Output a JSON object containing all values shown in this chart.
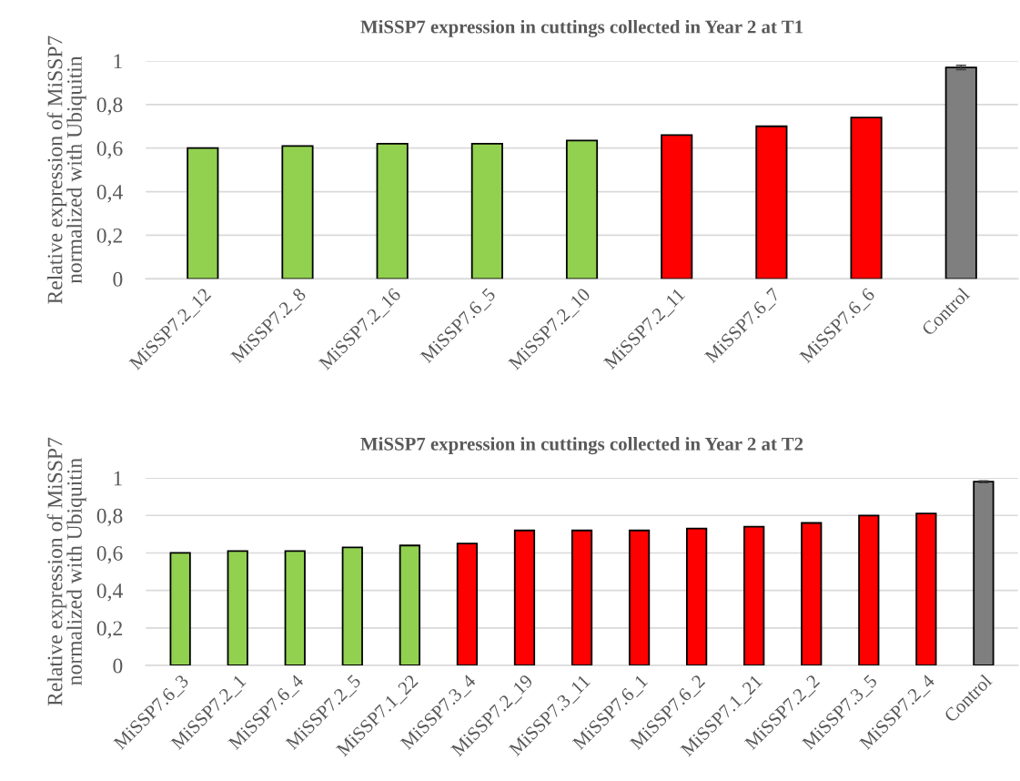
{
  "chart_data": [
    {
      "type": "bar",
      "title": "MiSSP7 expression in cuttings collected in Year 2 at T1",
      "ylabel": "Relative expression of MiSSP7\nnormalized with Ubiquitin",
      "categories": [
        "MiSSP7.2_12",
        "MiSSP7.2_8",
        "MiSSP7.2_16",
        "MiSSP7.6_5",
        "MiSSP7.2_10",
        "MiSSP7.2_11",
        "MiSSP7.6_7",
        "MiSSP7.6_6",
        "Control"
      ],
      "values": [
        0.6,
        0.61,
        0.62,
        0.62,
        0.635,
        0.66,
        0.7,
        0.74,
        0.97
      ],
      "errors": [
        null,
        null,
        null,
        null,
        null,
        null,
        null,
        null,
        0.01
      ],
      "colors": [
        "#92d050",
        "#92d050",
        "#92d050",
        "#92d050",
        "#92d050",
        "#ff0000",
        "#ff0000",
        "#ff0000",
        "#7f7f7f"
      ],
      "ylim": [
        0,
        1
      ],
      "yticks": [
        0,
        {
          "value": 0.2,
          "label": "0,2"
        },
        {
          "value": 0.4,
          "label": "0,4"
        },
        {
          "value": 0.6,
          "label": "0,6"
        },
        {
          "value": 0.8,
          "label": "0,8"
        },
        1
      ],
      "grid": "y",
      "legend": false
    },
    {
      "type": "bar",
      "title": "MiSSP7 expression in cuttings collected in Year 2 at T2",
      "ylabel": "Relative expression of MiSSP7\nnormalized with Ubiquitin",
      "categories": [
        "MiSSP7.6_3",
        "MiSSP7.2_1",
        "MiSSP7.6_4",
        "MiSSP7.2_5",
        "MiSSP7.1_22",
        "MiSSP7.3_4",
        "MiSSP7.2_19",
        "MiSSP7.3_11",
        "MiSSP7.6_1",
        "MiSSP7.6_2",
        "MiSSP7.1_21",
        "MiSSP7.2_2",
        "MiSSP7.3_5",
        "MiSSP7.2_4",
        "Control"
      ],
      "values": [
        0.6,
        0.61,
        0.61,
        0.63,
        0.64,
        0.65,
        0.72,
        0.72,
        0.72,
        0.73,
        0.74,
        0.76,
        0.8,
        0.81,
        0.98
      ],
      "errors": [
        null,
        null,
        null,
        null,
        null,
        null,
        null,
        null,
        null,
        null,
        null,
        null,
        null,
        null,
        0.005
      ],
      "colors": [
        "#92d050",
        "#92d050",
        "#92d050",
        "#92d050",
        "#92d050",
        "#ff0000",
        "#ff0000",
        "#ff0000",
        "#ff0000",
        "#ff0000",
        "#ff0000",
        "#ff0000",
        "#ff0000",
        "#ff0000",
        "#7f7f7f"
      ],
      "ylim": [
        0,
        1
      ],
      "yticks": [
        0,
        {
          "value": 0.2,
          "label": "0,2"
        },
        {
          "value": 0.4,
          "label": "0,4"
        },
        {
          "value": 0.6,
          "label": "0,6"
        },
        {
          "value": 0.8,
          "label": "0,8"
        },
        1
      ],
      "grid": "y",
      "legend": false
    }
  ]
}
